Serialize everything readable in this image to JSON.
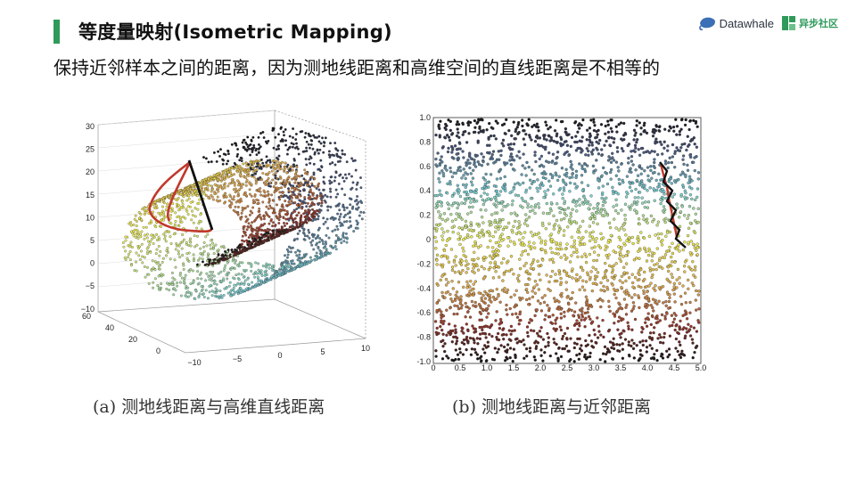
{
  "slide": {
    "title": "等度量映射(Isometric Mapping)",
    "subtitle": "保持近邻样本之间的距离，因为测地线距离和高维空间的直线距离是不相等的"
  },
  "logos": {
    "datawhale": "Datawhale",
    "yibu": "异步社区"
  },
  "figure_a": {
    "caption": "(a) 测地线距离与高维直线距离",
    "y_ticks": [
      "30",
      "25",
      "20",
      "15",
      "10",
      "5",
      "0",
      "−5",
      "−10"
    ],
    "depth_ticks": [
      "60",
      "40",
      "20",
      "0"
    ],
    "x_ticks": [
      "−10",
      "−5",
      "0",
      "5",
      "10"
    ]
  },
  "figure_b": {
    "caption": "(b) 测地线距离与近邻距离",
    "y_ticks": [
      "1.0",
      "0.8",
      "0.6",
      "0.4",
      "0.2",
      "0",
      "−0.2",
      "−0.4",
      "−0.6",
      "−0.8",
      "−1.0"
    ],
    "x_ticks": [
      "0",
      "0.5",
      "1.0",
      "1.5",
      "2.0",
      "2.5",
      "3.0",
      "3.5",
      "4.0",
      "4.5",
      "5.0"
    ]
  },
  "colors": {
    "accent": "#2f9a5a",
    "geodesic": "#c0392b",
    "straight_line": "#111111"
  },
  "chart_data": [
    {
      "type": "scatter",
      "title": "",
      "description_ref": "figure_a",
      "ylim": [
        -10,
        30
      ],
      "xlim": [
        -10,
        10
      ],
      "zlim": [
        0,
        60
      ]
    },
    {
      "type": "scatter",
      "title": "",
      "description_ref": "figure_b",
      "xlim": [
        0,
        5
      ],
      "ylim": [
        -1,
        1
      ]
    }
  ]
}
